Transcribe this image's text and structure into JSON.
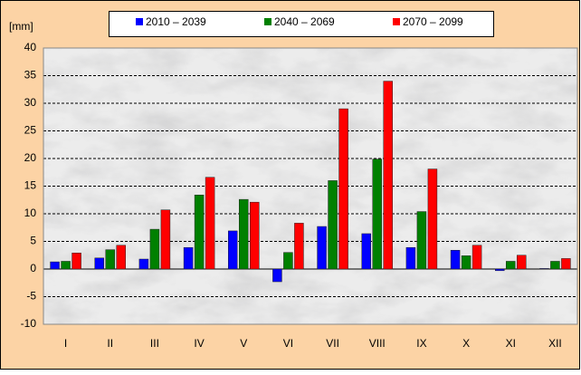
{
  "chart_data": {
    "type": "bar",
    "y_axis_label": "[mm]",
    "categories": [
      "I",
      "II",
      "III",
      "IV",
      "V",
      "VI",
      "VII",
      "VIII",
      "IX",
      "X",
      "XI",
      "XII"
    ],
    "series": [
      {
        "name": "2010 – 2039",
        "color": "#0000ff",
        "values": [
          1.3,
          2.0,
          1.8,
          3.9,
          6.9,
          -2.3,
          7.7,
          6.4,
          3.9,
          3.4,
          -0.3,
          0.1
        ]
      },
      {
        "name": "2040 – 2069",
        "color": "#008000",
        "values": [
          1.4,
          3.5,
          7.2,
          13.4,
          12.6,
          3.0,
          16.0,
          19.9,
          10.4,
          2.4,
          1.4,
          1.4
        ]
      },
      {
        "name": "2070 – 2099",
        "color": "#ff0000",
        "values": [
          2.9,
          4.3,
          10.7,
          16.6,
          12.1,
          8.3,
          29.0,
          34.0,
          18.1,
          4.3,
          2.5,
          1.9
        ]
      }
    ],
    "ylim": [
      -10,
      40
    ],
    "yticks": [
      -10,
      -5,
      0,
      5,
      10,
      15,
      20,
      25,
      30,
      35,
      40
    ],
    "grid": true
  }
}
